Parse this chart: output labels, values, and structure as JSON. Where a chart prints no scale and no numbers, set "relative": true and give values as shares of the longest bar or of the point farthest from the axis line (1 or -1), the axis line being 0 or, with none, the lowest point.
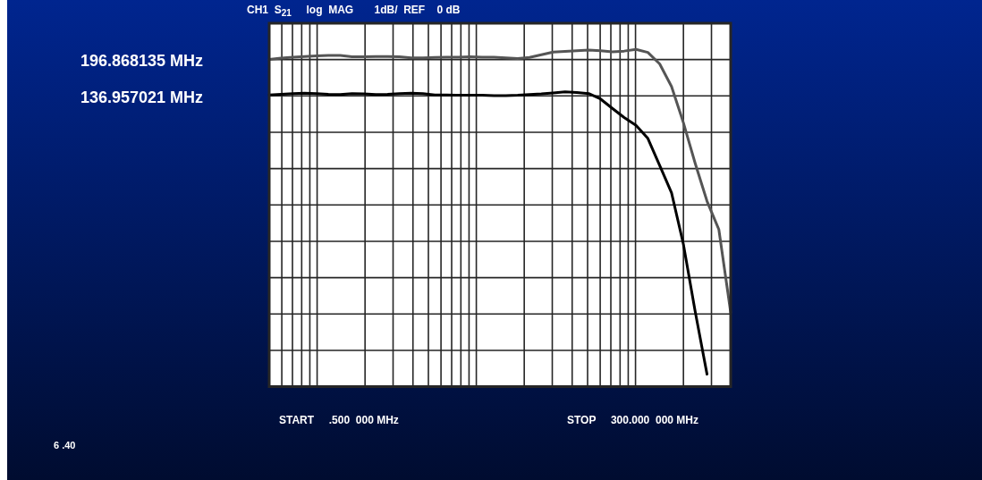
{
  "chart_data": {
    "type": "line",
    "title": "CH1  S$_{21}$     log  MAG       1dB/  REF    0 dB",
    "categories": [
      null,
      null,
      null,
      null,
      null,
      null,
      null,
      null,
      null,
      null,
      null,
      null,
      null,
      null,
      null,
      null,
      null,
      null,
      null,
      null,
      null,
      null,
      null,
      null,
      null,
      null,
      null,
      null,
      null,
      null,
      null,
      null,
      null,
      null,
      null,
      null,
      null,
      null,
      null,
      null
    ],
    "series": [
      {
        "color": "#555555",
        "values": [
          0.97,
          0.974,
          0.977,
          0.979,
          0.981,
          0.982,
          0.982,
          0.978,
          0.978,
          0.979,
          0.979,
          0.978,
          0.975,
          0.975,
          0.976,
          0.977,
          0.977,
          0.978,
          0.977,
          0.977,
          0.975,
          0.973,
          0.976,
          0.984,
          0.992,
          0.994,
          0.996,
          0.998,
          0.996,
          0.993,
          0.995,
          1.0,
          0.991,
          0.957,
          0.89,
          0.783,
          0.662,
          0.55,
          0.466,
          0.22
        ]
      },
      {
        "color": "#000000",
        "values": [
          0.865,
          0.867,
          0.869,
          0.87,
          0.869,
          0.867,
          0.866,
          0.869,
          0.868,
          0.866,
          0.867,
          0.869,
          0.87,
          0.869,
          0.865,
          0.865,
          0.864,
          0.864,
          0.864,
          0.863,
          0.863,
          0.864,
          0.866,
          0.868,
          0.871,
          0.874,
          0.872,
          0.869,
          0.853,
          0.825,
          0.798,
          0.775,
          0.736,
          0.656,
          0.575,
          0.423,
          0.223,
          0.037,
          null,
          null
        ]
      }
    ],
    "relative": true,
    "annotations": [
      "196.868135 MHz",
      "136.957021 MHz",
      "START     .500  000 MHz",
      "STOP     300.000  000 MHz",
      "6 .40"
    ],
    "grid": true,
    "legend": false,
    "marker": "none",
    "line_style": "solid"
  }
}
